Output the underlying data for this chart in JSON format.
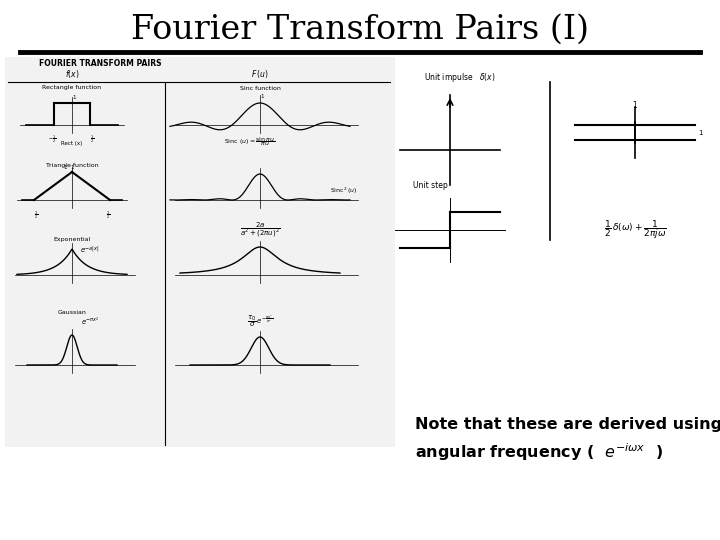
{
  "title": "Fourier Transform Pairs (I)",
  "title_fontsize": 24,
  "background_color": "#ffffff",
  "line_color": "#000000",
  "note_text_line1": "Note that these are derived using",
  "note_text_line2": "angular frequency (  $e^{-i\\omega x}$  )",
  "note_fontsize": 11.5,
  "separator_lw": 3.5
}
